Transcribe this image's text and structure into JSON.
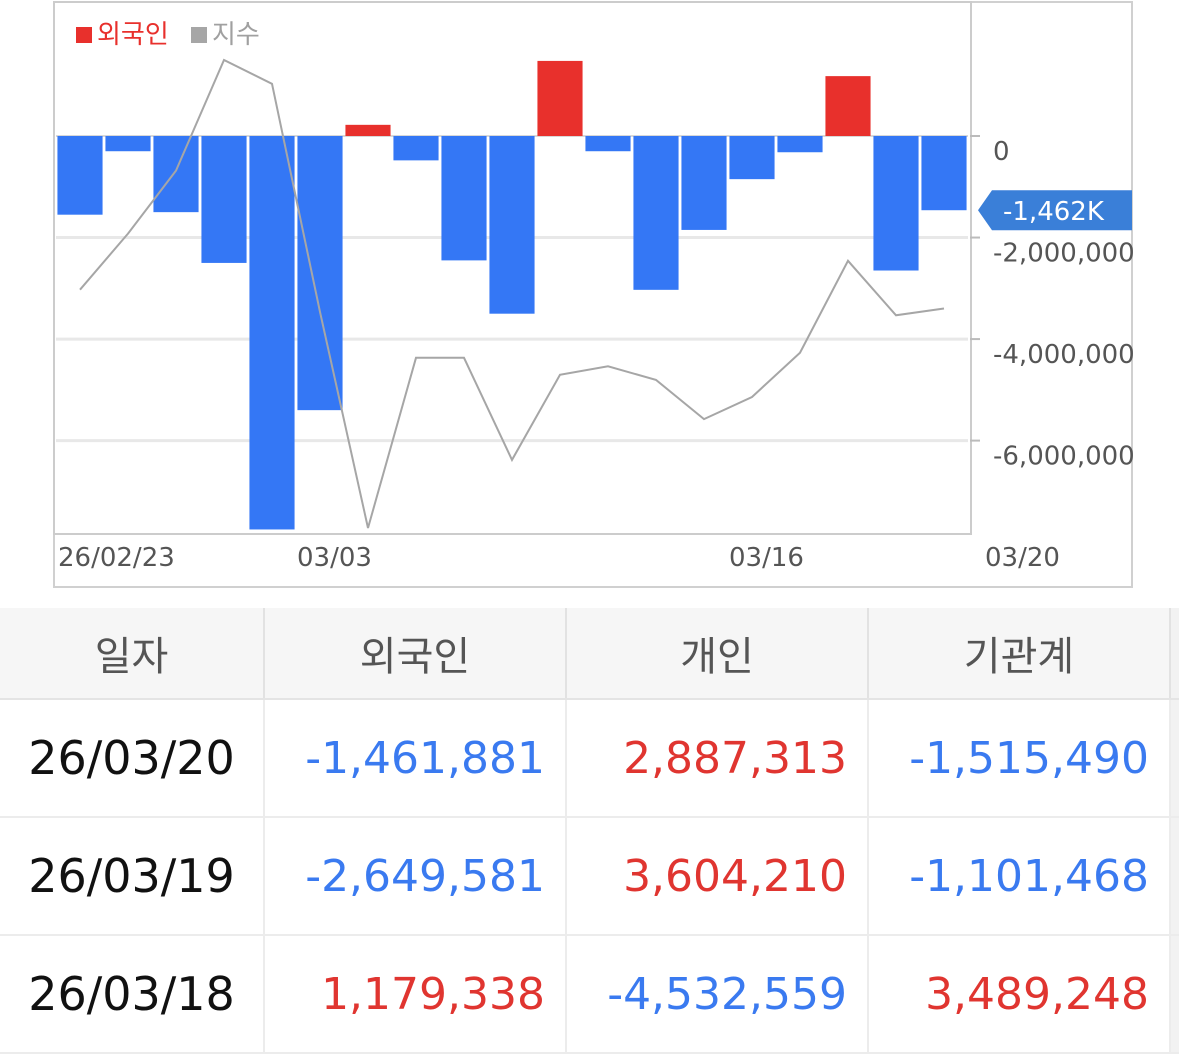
{
  "chart_data": {
    "type": "bar",
    "legend": [
      {
        "name": "외국인",
        "color": "#e8302c"
      },
      {
        "name": "지수",
        "color": "#a6a6a6"
      }
    ],
    "legend_placement": "top-left",
    "x_tick_labels": [
      "26/02/23",
      "03/03",
      "03/16",
      "03/20"
    ],
    "series": [
      {
        "name": "외국인",
        "type": "bar",
        "positive_color": "#e8302c",
        "negative_color": "#3477f5",
        "values": [
          -1550000,
          -300000,
          -1500000,
          -2500000,
          -7750000,
          -5400000,
          220000,
          -480000,
          -2450000,
          -3500000,
          1479000,
          -300000,
          -3030000,
          -1850000,
          -850000,
          -320000,
          1179338,
          -2649581,
          -1461881
        ]
      },
      {
        "name": "지수",
        "type": "line",
        "color": "#a6a6a6",
        "values": [
          4.5,
          7.8,
          11.5,
          18.0,
          16.6,
          3.2,
          -9.5,
          0.5,
          0.5,
          -5.5,
          -0.5,
          0.0,
          -0.8,
          -3.1,
          -1.8,
          0.8,
          6.2,
          3.0,
          3.4
        ]
      }
    ],
    "y_axis": {
      "ticks": [
        0,
        -2000000,
        -4000000,
        -6000000
      ],
      "tick_labels": [
        "0",
        "-2,000,000",
        "-4,000,000",
        "-6,000,000"
      ],
      "range": [
        -7800000,
        2600000
      ],
      "grid": true
    },
    "current_value_label": "-1,462K",
    "current_value": -1461881
  },
  "table": {
    "headers": [
      "일자",
      "외국인",
      "개인",
      "기관계"
    ],
    "rows": [
      [
        "26/03/20",
        "-1,461,881",
        "2,887,313",
        "-1,515,490"
      ],
      [
        "26/03/19",
        "-2,649,581",
        "3,604,210",
        "-1,101,468"
      ],
      [
        "26/03/18",
        "1,179,338",
        "-4,532,559",
        "3,489,248"
      ]
    ]
  }
}
